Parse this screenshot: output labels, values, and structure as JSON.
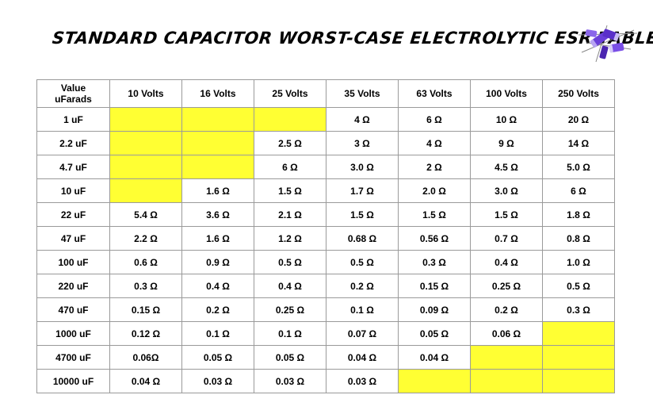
{
  "title": "STANDARD CAPACITOR WORST-CASE ELECTROLYTIC ESR TABLE",
  "colors": {
    "unavailable_fill": "#ffff33",
    "grid": "#9a9a9a",
    "capacitor_body": "#6a3fd9"
  },
  "table": {
    "corner_header": [
      "Value",
      "uFarads"
    ],
    "columns": [
      "10 Volts",
      "16 Volts",
      "25 Volts",
      "35 Volts",
      "63 Volts",
      "100 Volts",
      "250 Volts"
    ],
    "rows": [
      {
        "label": "1 uF",
        "cells": [
          null,
          null,
          null,
          "4 Ω",
          "6 Ω",
          "10 Ω",
          "20 Ω"
        ]
      },
      {
        "label": "2.2 uF",
        "cells": [
          null,
          null,
          "2.5 Ω",
          "3 Ω",
          "4 Ω",
          "9 Ω",
          "14 Ω"
        ]
      },
      {
        "label": "4.7 uF",
        "cells": [
          null,
          null,
          "6 Ω",
          "3.0 Ω",
          "2 Ω",
          "4.5 Ω",
          "5.0 Ω"
        ]
      },
      {
        "label": "10 uF",
        "cells": [
          null,
          "1.6 Ω",
          "1.5 Ω",
          "1.7 Ω",
          "2.0 Ω",
          "3.0 Ω",
          "6 Ω"
        ]
      },
      {
        "label": "22 uF",
        "cells": [
          "5.4 Ω",
          "3.6 Ω",
          "2.1 Ω",
          "1.5 Ω",
          "1.5 Ω",
          "1.5 Ω",
          "1.8 Ω"
        ]
      },
      {
        "label": "47 uF",
        "cells": [
          "2.2 Ω",
          "1.6 Ω",
          "1.2 Ω",
          "0.68 Ω",
          "0.56 Ω",
          "0.7 Ω",
          "0.8 Ω"
        ]
      },
      {
        "label": "100 uF",
        "cells": [
          "0.6 Ω",
          "0.9 Ω",
          "0.5 Ω",
          "0.5 Ω",
          "0.3 Ω",
          "0.4 Ω",
          "1.0 Ω"
        ]
      },
      {
        "label": "220 uF",
        "cells": [
          "0.3 Ω",
          "0.4 Ω",
          "0.4 Ω",
          "0.2 Ω",
          "0.15 Ω",
          "0.25 Ω",
          "0.5 Ω"
        ]
      },
      {
        "label": "470 uF",
        "cells": [
          "0.15 Ω",
          "0.2 Ω",
          "0.25 Ω",
          "0.1 Ω",
          "0.09 Ω",
          "0.2 Ω",
          "0.3 Ω"
        ]
      },
      {
        "label": "1000 uF",
        "cells": [
          "0.12 Ω",
          "0.1 Ω",
          "0.1 Ω",
          "0.07 Ω",
          "0.05 Ω",
          "0.06 Ω",
          null
        ]
      },
      {
        "label": "4700 uF",
        "cells": [
          "0.06Ω",
          "0.05 Ω",
          "0.05 Ω",
          "0.04 Ω",
          "0.04 Ω",
          null,
          null
        ]
      },
      {
        "label": "10000 uF",
        "cells": [
          "0.04 Ω",
          "0.03 Ω",
          "0.03 Ω",
          "0.03 Ω",
          null,
          null,
          null
        ]
      }
    ]
  },
  "icons": {
    "header_graphic": "capacitors-icon"
  }
}
